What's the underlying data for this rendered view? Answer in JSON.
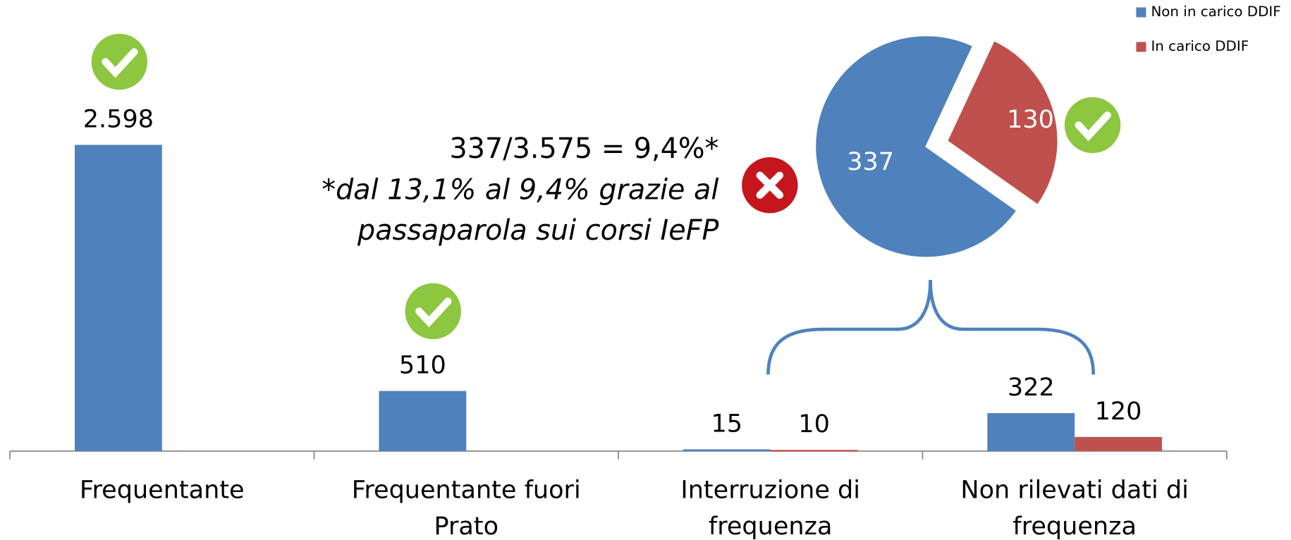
{
  "chart_data": [
    {
      "type": "bar",
      "categories": [
        "Frequentante",
        "Frequentante fuori Prato",
        "Interruzione di frequenza",
        "Non rilevati dati di frequenza"
      ],
      "series": [
        {
          "name": "Non in carico DDIF",
          "color": "#4f81bd",
          "values": [
            2598,
            510,
            15,
            322
          ],
          "value_labels": [
            "2.598",
            "510",
            "15",
            "322"
          ]
        },
        {
          "name": "In carico DDIF",
          "color": "#c0504d",
          "values": [
            null,
            null,
            10,
            120
          ],
          "value_labels": [
            null,
            null,
            "10",
            "120"
          ]
        }
      ],
      "ylim": [
        0,
        2600
      ],
      "legend": "top-right"
    },
    {
      "type": "pie",
      "categories": [
        "Non in carico DDIF",
        "In carico DDIF"
      ],
      "values": [
        337,
        130
      ],
      "colors": [
        "#4f81bd",
        "#c0504d"
      ],
      "annotation": "337/3.575 = 9,4%*",
      "notes": [
        "*dal 13,1% al 9,4% grazie al",
        "passaparola sui corsi IeFP"
      ]
    }
  ]
}
